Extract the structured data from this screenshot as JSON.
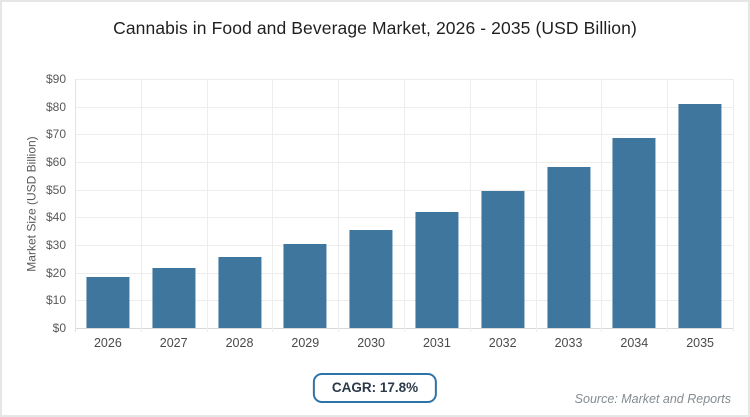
{
  "title": "Cannabis in Food and Beverage Market, 2026 - 2035 (USD Billion)",
  "footer": {
    "cagr_label": "CAGR: 17.8%",
    "source": "Source: Market and Reports"
  },
  "colors": {
    "bar": "#3e769d",
    "gridline": "#ededed",
    "axis_line": "#d8d8d8",
    "badge_border": "#2e74a6",
    "badge_text": "#2b3a4a",
    "tick_text": "#595959",
    "x_label_text": "#4a4a4a",
    "source_text": "#848c91",
    "frame_border": "#e6e6e6",
    "background": "#ffffff"
  },
  "chart_data": {
    "type": "bar",
    "title": "Cannabis in Food and Beverage Market, 2026 - 2035 (USD Billion)",
    "categories": [
      "2026",
      "2027",
      "2028",
      "2029",
      "2030",
      "2031",
      "2032",
      "2033",
      "2034",
      "2035"
    ],
    "values": [
      18.5,
      21.8,
      25.7,
      30.2,
      35.6,
      42.0,
      49.4,
      58.2,
      68.6,
      80.8
    ],
    "xlabel": "",
    "ylabel": "Market Size (USD Billion)",
    "ylim": [
      0,
      90
    ],
    "ytick_step": 10,
    "ytick_prefix": "$",
    "grid": true,
    "legend_position": "none",
    "annotations": [
      "CAGR: 17.8%",
      "Source: Market and Reports"
    ]
  }
}
